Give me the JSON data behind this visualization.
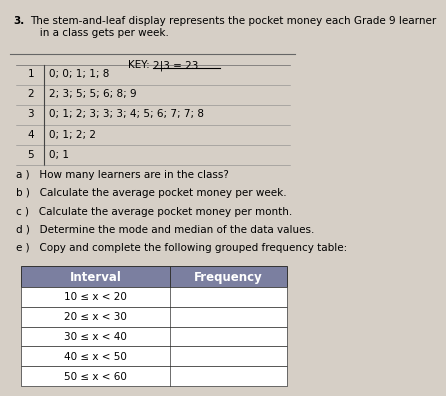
{
  "title_num": "3.",
  "title_text": "The stem-and-leaf display represents the pocket money each Grade 9 learner\n   in a class gets per week.",
  "key_text": "KEY: 2|3 = 23",
  "stem_rows": [
    {
      "stem": "1",
      "leaves": "0; 0; 1; 1; 8"
    },
    {
      "stem": "2",
      "leaves": "2; 3; 5; 5; 6; 8; 9"
    },
    {
      "stem": "3",
      "leaves": "0; 1; 2; 3; 3; 3; 4; 5; 6; 7; 7; 8"
    },
    {
      "stem": "4",
      "leaves": "0; 1; 2; 2"
    },
    {
      "stem": "5",
      "leaves": "0; 1"
    }
  ],
  "questions": [
    "a )   How many learners are in the class?",
    "b )   Calculate the average pocket money per week.",
    "c )   Calculate the average pocket money per month.",
    "d )   Determine the mode and median of the data values.",
    "e )   Copy and complete the following grouped frequency table:"
  ],
  "table_headers": [
    "Interval",
    "Frequency"
  ],
  "table_rows": [
    "10 ≤ x < 20",
    "20 ≤ x < 30",
    "30 ≤ x < 40",
    "40 ≤ x < 50",
    "50 ≤ x < 60"
  ],
  "header_bg": "#7b7fa0",
  "header_text_color": "#ffffff",
  "row_bg": "#ffffff",
  "border_color": "#333333",
  "background_color": "#d6cfc6",
  "text_color": "#000000"
}
